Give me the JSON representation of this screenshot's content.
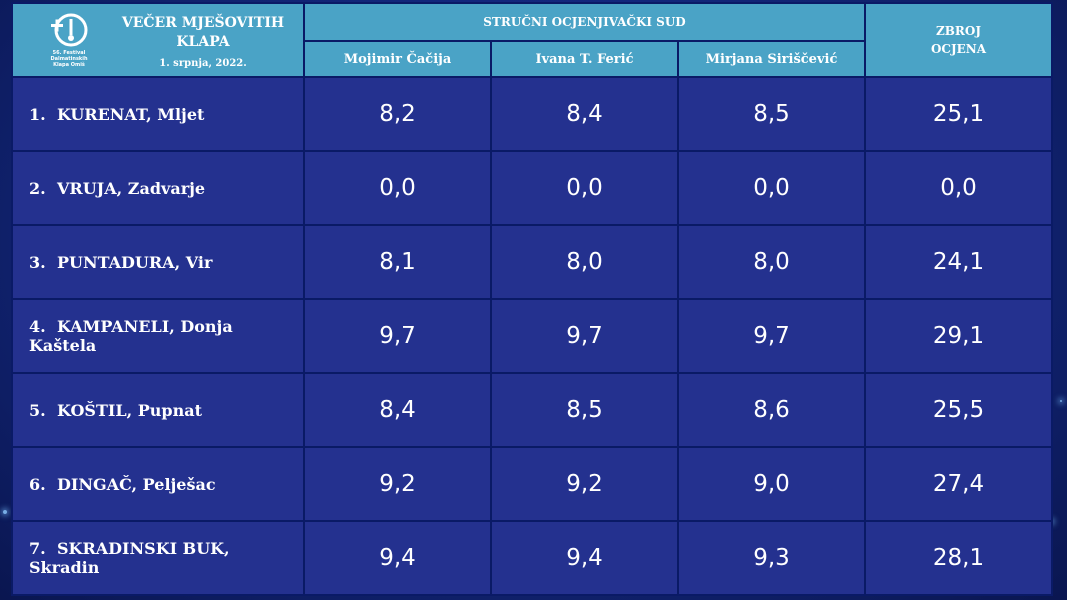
{
  "header": {
    "logo_text": [
      "56. Festival",
      "Dalmatinskih",
      "Klapa Omiš"
    ],
    "event_title_line1": "VEČER MJEŠOVITIH",
    "event_title_line2": "KLAPA",
    "event_date": "1. srpnja, 2022.",
    "jury_title": "STRUČNI OCJENJIVAČKI SUD",
    "judges": [
      "Mojimir Čačija",
      "Ivana T. Ferić",
      "Mirjana Siriščević"
    ],
    "sum_title_line1": "ZBROJ",
    "sum_title_line2": "OCJENA"
  },
  "rows": [
    {
      "rank": "1.",
      "name": "KURENAT, Mljet",
      "scores": [
        "8,2",
        "8,4",
        "8,5"
      ],
      "total": "25,1"
    },
    {
      "rank": "2.",
      "name": "VRUJA, Zadvarje",
      "scores": [
        "0,0",
        "0,0",
        "0,0"
      ],
      "total": "0,0"
    },
    {
      "rank": "3.",
      "name": "PUNTADURA, Vir",
      "scores": [
        "8,1",
        "8,0",
        "8,0"
      ],
      "total": "24,1"
    },
    {
      "rank": "4.",
      "name": "KAMPANELI, Donja Kaštela",
      "scores": [
        "9,7",
        "9,7",
        "9,7"
      ],
      "total": "29,1"
    },
    {
      "rank": "5.",
      "name": "KOŠTIL, Pupnat",
      "scores": [
        "8,4",
        "8,5",
        "8,6"
      ],
      "total": "25,5"
    },
    {
      "rank": "6.",
      "name": "DINGAČ, Pelješac",
      "scores": [
        "9,2",
        "9,2",
        "9,0"
      ],
      "total": "27,4"
    },
    {
      "rank": "7.",
      "name": "SKRADINSKI BUK, Skradin",
      "scores": [
        "9,4",
        "9,4",
        "9,3"
      ],
      "total": "28,1"
    }
  ],
  "colors": {
    "header_bg": "#4aa3c6",
    "row_bg": "#24318f",
    "grid": "#0a1a66",
    "background": "#13287e"
  }
}
